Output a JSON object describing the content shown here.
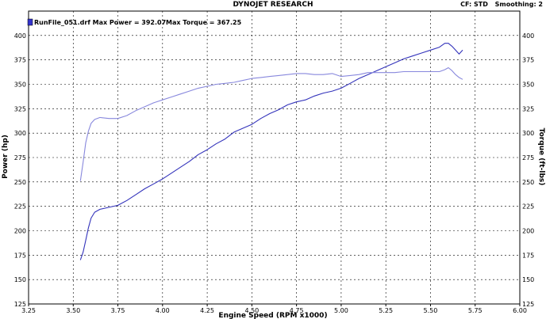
{
  "header": {
    "title": "DYNOJET RESEARCH",
    "cf_label": "CF: STD",
    "smoothing_label": "Smoothing: 2"
  },
  "legend": {
    "run_label": "RunFile_051.drf Max Power = 392.07",
    "torque_label": "Max Torque = 367.25",
    "swatch_color": "#3333cc"
  },
  "chart_data": {
    "type": "line",
    "title": "DYNOJET RESEARCH",
    "xlabel": "Engine Speed (RPM x1000)",
    "ylabel_left": "Power (hp)",
    "ylabel_right": "Torque (ft-lbs)",
    "xlim": [
      3.25,
      6.0
    ],
    "ylim": [
      125,
      425
    ],
    "x_ticks": [
      "3.25",
      "3.50",
      "3.75",
      "4.00",
      "4.25",
      "4.50",
      "4.75",
      "5.00",
      "5.25",
      "5.50",
      "5.75",
      "6.00"
    ],
    "y_ticks": [
      "125",
      "150",
      "175",
      "200",
      "225",
      "250",
      "275",
      "300",
      "325",
      "350",
      "375",
      "400"
    ],
    "grid": true,
    "series": [
      {
        "name": "Power",
        "color": "#3333bb",
        "x": [
          3.54,
          3.555,
          3.57,
          3.585,
          3.6,
          3.62,
          3.65,
          3.7,
          3.75,
          3.8,
          3.85,
          3.9,
          3.95,
          4.0,
          4.05,
          4.1,
          4.15,
          4.2,
          4.25,
          4.3,
          4.35,
          4.4,
          4.45,
          4.5,
          4.55,
          4.6,
          4.65,
          4.7,
          4.75,
          4.8,
          4.85,
          4.9,
          4.95,
          5.0,
          5.05,
          5.1,
          5.15,
          5.2,
          5.25,
          5.3,
          5.35,
          5.4,
          5.45,
          5.5,
          5.55,
          5.58,
          5.6,
          5.62,
          5.64,
          5.66,
          5.68
        ],
        "values": [
          170,
          178,
          190,
          203,
          213,
          219,
          222,
          224,
          226,
          231,
          237,
          243,
          248,
          253,
          259,
          265,
          271,
          278,
          283,
          289,
          294,
          301,
          305,
          309,
          315,
          320,
          324,
          329,
          332,
          334,
          338,
          341,
          343,
          346,
          351,
          356,
          360,
          364,
          368,
          372,
          376,
          379,
          382,
          385,
          388,
          392,
          392,
          389,
          385,
          381,
          385
        ]
      },
      {
        "name": "Torque",
        "color": "#8888dd",
        "x": [
          3.54,
          3.555,
          3.57,
          3.585,
          3.6,
          3.62,
          3.65,
          3.7,
          3.75,
          3.8,
          3.85,
          3.9,
          3.95,
          4.0,
          4.05,
          4.1,
          4.15,
          4.2,
          4.25,
          4.3,
          4.35,
          4.4,
          4.45,
          4.5,
          4.55,
          4.6,
          4.65,
          4.7,
          4.75,
          4.8,
          4.85,
          4.9,
          4.95,
          5.0,
          5.05,
          5.1,
          5.15,
          5.2,
          5.25,
          5.3,
          5.35,
          5.4,
          5.45,
          5.5,
          5.55,
          5.58,
          5.6,
          5.62,
          5.64,
          5.66,
          5.68
        ],
        "values": [
          251,
          270,
          290,
          302,
          310,
          314,
          316,
          315,
          315,
          318,
          323,
          327,
          331,
          334,
          337,
          340,
          343,
          346,
          348,
          350,
          351,
          352,
          354,
          356,
          357,
          358,
          359,
          360,
          361,
          361,
          360,
          360,
          361,
          358,
          359,
          360,
          362,
          362,
          362,
          362,
          363,
          363,
          363,
          363,
          363,
          365,
          367,
          364,
          360,
          357,
          355
        ]
      }
    ]
  }
}
